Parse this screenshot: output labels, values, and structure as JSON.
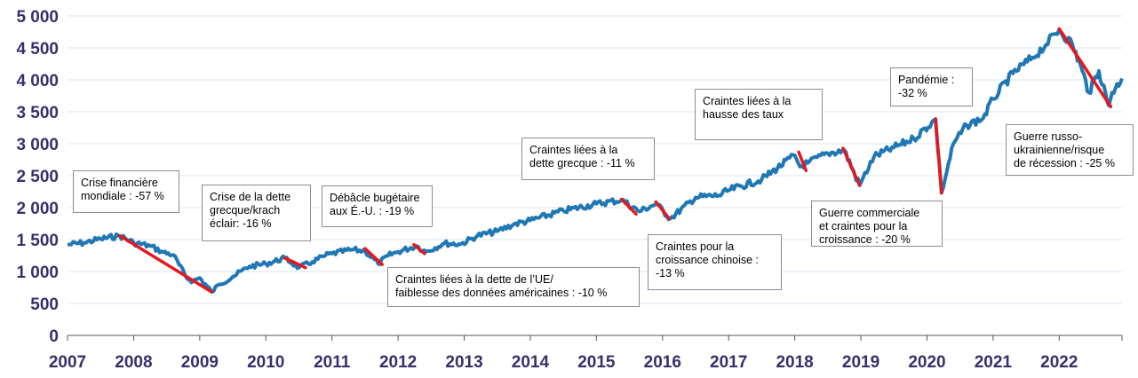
{
  "chart_data": {
    "type": "line",
    "title": "",
    "xlabel": "",
    "ylabel": "",
    "ylim": [
      0,
      5000
    ],
    "yticks": [
      0,
      500,
      1000,
      1500,
      2000,
      2500,
      3000,
      3500,
      4000,
      4500,
      5000
    ],
    "ytick_labels": [
      "0",
      "500",
      "1 000",
      "1 500",
      "2 000",
      "2 500",
      "3 000",
      "3 500",
      "4 000",
      "4 500",
      "5 000"
    ],
    "xlim": [
      2007.0,
      2022.95
    ],
    "xtick_labels": [
      "2007",
      "2008",
      "2009",
      "2010",
      "2011",
      "2012",
      "2013",
      "2014",
      "2015",
      "2016",
      "2017",
      "2018",
      "2019",
      "2020",
      "2021",
      "2022"
    ],
    "grid": true,
    "series": [
      {
        "color": "#1f77b4",
        "x": [
          2007.0,
          2007.25,
          2007.5,
          2007.79,
          2008.0,
          2008.25,
          2008.45,
          2008.6,
          2008.8,
          2008.9,
          2009.0,
          2009.18,
          2009.3,
          2009.5,
          2009.75,
          2010.0,
          2010.29,
          2010.5,
          2010.7,
          2010.9,
          2011.0,
          2011.3,
          2011.5,
          2011.7,
          2011.85,
          2012.0,
          2012.28,
          2012.42,
          2012.7,
          2012.95,
          2013.2,
          2013.5,
          2013.75,
          2014.0,
          2014.5,
          2015.0,
          2015.38,
          2015.65,
          2015.9,
          2016.12,
          2016.5,
          2016.85,
          2017.0,
          2017.5,
          2018.0,
          2018.08,
          2018.2,
          2018.5,
          2018.75,
          2018.98,
          2019.2,
          2019.5,
          2019.8,
          2020.13,
          2020.22,
          2020.4,
          2020.6,
          2020.85,
          2021.0,
          2021.3,
          2021.6,
          2021.8,
          2022.0,
          2022.2,
          2022.35,
          2022.45,
          2022.6,
          2022.75,
          2022.8,
          2022.95
        ],
        "y": [
          1420,
          1450,
          1510,
          1560,
          1450,
          1400,
          1300,
          1260,
          900,
          850,
          900,
          680,
          800,
          920,
          1080,
          1120,
          1210,
          1060,
          1150,
          1250,
          1280,
          1340,
          1320,
          1120,
          1250,
          1310,
          1400,
          1310,
          1440,
          1430,
          1560,
          1630,
          1740,
          1800,
          1950,
          2060,
          2120,
          1940,
          2060,
          1830,
          2160,
          2190,
          2270,
          2440,
          2820,
          2640,
          2700,
          2850,
          2900,
          2350,
          2800,
          2940,
          3080,
          3380,
          2230,
          3000,
          3290,
          3400,
          3700,
          4100,
          4350,
          4550,
          4790,
          4550,
          4140,
          3800,
          4140,
          3600,
          3800,
          4020
        ]
      }
    ],
    "drawdowns": [
      {
        "label": "Crise financière\nmondiale : -57 %",
        "start": [
          2007.79,
          1560
        ],
        "end": [
          2009.18,
          680
        ]
      },
      {
        "label": "Crise de la dette\ngrecque/krach\néclair: -16 %",
        "start": [
          2010.29,
          1210
        ],
        "end": [
          2010.6,
          1060
        ]
      },
      {
        "label": "Débâcle bugétaire\naux É.-U. : -19 %",
        "start": [
          2011.5,
          1360
        ],
        "end": [
          2011.76,
          1110
        ]
      },
      {
        "label": "Craintes liées à la dette de l’UE/\nfaiblesse des données américaines : -10 %",
        "start": [
          2012.24,
          1420
        ],
        "end": [
          2012.4,
          1280
        ]
      },
      {
        "label": "Craintes liées à la\ndette grecque : -11 %",
        "start": [
          2015.38,
          2130
        ],
        "end": [
          2015.6,
          1900
        ]
      },
      {
        "label": "Craintes pour la\ncroissance chinoise :\n-13 %",
        "start": [
          2015.9,
          2090
        ],
        "end": [
          2016.1,
          1830
        ]
      },
      {
        "label": "Craintes liées à la\nhausse des taux",
        "start": [
          2018.06,
          2870
        ],
        "end": [
          2018.17,
          2580
        ]
      },
      {
        "label": "Guerre commerciale\net craintes pour la\ncroissance : -20 %",
        "start": [
          2018.73,
          2930
        ],
        "end": [
          2018.98,
          2350
        ]
      },
      {
        "label": "Pandémie :\n-32 %",
        "start": [
          2020.13,
          3390
        ],
        "end": [
          2020.22,
          2230
        ]
      },
      {
        "label": "Guerre russo-\nukrainienne/risque\nde récession : -25 %",
        "start": [
          2022.0,
          4800
        ],
        "end": [
          2022.78,
          3580
        ]
      }
    ]
  },
  "colors": {
    "series": "#1f77b4",
    "drawdown": "#e8171c",
    "axis_text": "#3a2f6b",
    "grid": "#d9e6f2"
  }
}
